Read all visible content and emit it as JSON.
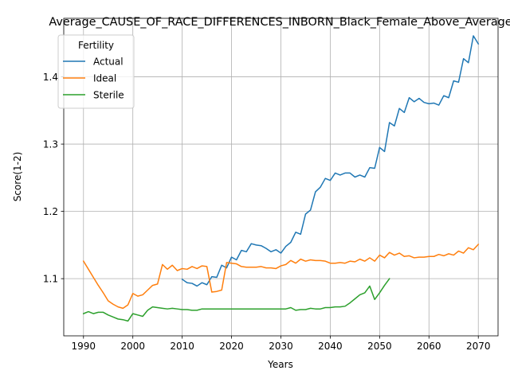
{
  "chart_data": {
    "type": "line",
    "title": "Average_CAUSE_OF_RACE_DIFFERENCES_INBORN_Black_Female_Above_Average",
    "xlabel": "Years",
    "ylabel": "Score(1-2)",
    "xlim": [
      1986,
      2074
    ],
    "ylim": [
      1.015,
      1.487
    ],
    "xticks": [
      1990,
      2000,
      2010,
      2020,
      2030,
      2040,
      2050,
      2060,
      2070
    ],
    "yticks": [
      1.1,
      1.2,
      1.3,
      1.4
    ],
    "ytick_labels": [
      "1.1",
      "1.2",
      "1.3",
      "1.4"
    ],
    "grid": true,
    "legend": {
      "title": "Fertility",
      "placement": "top-left"
    },
    "series": [
      {
        "name": "Actual",
        "color": "#1f77b4",
        "x": [
          2010,
          2011,
          2012,
          2013,
          2014,
          2015,
          2016,
          2017,
          2018,
          2019,
          2020,
          2021,
          2022,
          2023,
          2024,
          2025,
          2026,
          2027,
          2028,
          2029,
          2030,
          2031,
          2032,
          2033,
          2034,
          2035,
          2036,
          2037,
          2038,
          2039,
          2040,
          2041,
          2042,
          2043,
          2044,
          2045,
          2046,
          2047,
          2048,
          2049,
          2050,
          2051,
          2052,
          2053,
          2054,
          2055,
          2056,
          2057,
          2058,
          2059,
          2060,
          2061,
          2062,
          2063,
          2064,
          2065,
          2066,
          2067,
          2068,
          2069,
          2070
        ],
        "y": [
          1.099,
          1.094,
          1.093,
          1.089,
          1.094,
          1.091,
          1.103,
          1.102,
          1.12,
          1.116,
          1.132,
          1.128,
          1.142,
          1.14,
          1.152,
          1.15,
          1.149,
          1.145,
          1.14,
          1.143,
          1.138,
          1.148,
          1.154,
          1.169,
          1.166,
          1.196,
          1.202,
          1.229,
          1.236,
          1.249,
          1.246,
          1.257,
          1.254,
          1.257,
          1.257,
          1.251,
          1.254,
          1.251,
          1.265,
          1.264,
          1.295,
          1.289,
          1.332,
          1.327,
          1.353,
          1.347,
          1.369,
          1.363,
          1.368,
          1.362,
          1.36,
          1.361,
          1.358,
          1.372,
          1.369,
          1.394,
          1.392,
          1.427,
          1.421,
          1.461,
          1.449
        ]
      },
      {
        "name": "Ideal",
        "color": "#ff7f0e",
        "x": [
          1990,
          1991,
          1992,
          1993,
          1994,
          1995,
          1996,
          1997,
          1998,
          1999,
          2000,
          2001,
          2002,
          2003,
          2004,
          2005,
          2006,
          2007,
          2008,
          2009,
          2010,
          2011,
          2012,
          2013,
          2014,
          2015,
          2016,
          2017,
          2018,
          2019,
          2020,
          2021,
          2022,
          2023,
          2024,
          2025,
          2026,
          2027,
          2028,
          2029,
          2030,
          2031,
          2032,
          2033,
          2034,
          2035,
          2036,
          2037,
          2038,
          2039,
          2040,
          2041,
          2042,
          2043,
          2044,
          2045,
          2046,
          2047,
          2048,
          2049,
          2050,
          2051,
          2052,
          2053,
          2054,
          2055,
          2056,
          2057,
          2058,
          2059,
          2060,
          2061,
          2062,
          2063,
          2064,
          2065,
          2066,
          2067,
          2068,
          2069,
          2070
        ],
        "y": [
          1.126,
          1.114,
          1.102,
          1.09,
          1.079,
          1.067,
          1.062,
          1.058,
          1.056,
          1.061,
          1.078,
          1.074,
          1.076,
          1.083,
          1.09,
          1.092,
          1.121,
          1.114,
          1.12,
          1.112,
          1.115,
          1.114,
          1.118,
          1.115,
          1.119,
          1.118,
          1.08,
          1.081,
          1.083,
          1.124,
          1.123,
          1.122,
          1.118,
          1.117,
          1.117,
          1.117,
          1.118,
          1.116,
          1.116,
          1.115,
          1.119,
          1.121,
          1.127,
          1.123,
          1.129,
          1.126,
          1.128,
          1.127,
          1.127,
          1.126,
          1.123,
          1.123,
          1.124,
          1.123,
          1.126,
          1.125,
          1.129,
          1.126,
          1.131,
          1.126,
          1.135,
          1.131,
          1.139,
          1.135,
          1.138,
          1.133,
          1.134,
          1.131,
          1.132,
          1.132,
          1.133,
          1.133,
          1.136,
          1.134,
          1.137,
          1.135,
          1.141,
          1.138,
          1.146,
          1.143,
          1.151
        ]
      },
      {
        "name": "Sterile",
        "color": "#2ca02c",
        "x": [
          1990,
          1991,
          1992,
          1993,
          1994,
          1995,
          1996,
          1997,
          1998,
          1999,
          2000,
          2001,
          2002,
          2003,
          2004,
          2005,
          2006,
          2007,
          2008,
          2009,
          2010,
          2011,
          2012,
          2013,
          2014,
          2015,
          2016,
          2017,
          2018,
          2019,
          2020,
          2021,
          2022,
          2023,
          2024,
          2025,
          2026,
          2027,
          2028,
          2029,
          2030,
          2031,
          2032,
          2033,
          2034,
          2035,
          2036,
          2037,
          2038,
          2039,
          2040,
          2041,
          2042,
          2043,
          2044,
          2045,
          2046,
          2047,
          2048,
          2049,
          2050,
          2051,
          2052
        ],
        "y": [
          1.048,
          1.051,
          1.048,
          1.05,
          1.05,
          1.046,
          1.043,
          1.04,
          1.039,
          1.037,
          1.048,
          1.046,
          1.044,
          1.053,
          1.058,
          1.057,
          1.056,
          1.055,
          1.056,
          1.055,
          1.054,
          1.054,
          1.053,
          1.053,
          1.055,
          1.055,
          1.055,
          1.055,
          1.055,
          1.055,
          1.055,
          1.055,
          1.055,
          1.055,
          1.055,
          1.055,
          1.055,
          1.055,
          1.055,
          1.055,
          1.055,
          1.055,
          1.057,
          1.053,
          1.054,
          1.054,
          1.056,
          1.055,
          1.055,
          1.057,
          1.057,
          1.058,
          1.058,
          1.059,
          1.064,
          1.07,
          1.076,
          1.079,
          1.089,
          1.069,
          1.079,
          1.09,
          1.1
        ]
      }
    ]
  }
}
